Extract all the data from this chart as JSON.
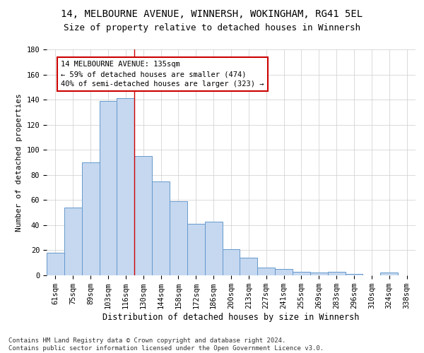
{
  "title1": "14, MELBOURNE AVENUE, WINNERSH, WOKINGHAM, RG41 5EL",
  "title2": "Size of property relative to detached houses in Winnersh",
  "xlabel": "Distribution of detached houses by size in Winnersh",
  "ylabel": "Number of detached properties",
  "categories": [
    "61sqm",
    "75sqm",
    "89sqm",
    "103sqm",
    "116sqm",
    "130sqm",
    "144sqm",
    "158sqm",
    "172sqm",
    "186sqm",
    "200sqm",
    "213sqm",
    "227sqm",
    "241sqm",
    "255sqm",
    "269sqm",
    "283sqm",
    "296sqm",
    "310sqm",
    "324sqm",
    "338sqm"
  ],
  "values": [
    18,
    54,
    90,
    139,
    141,
    95,
    75,
    59,
    41,
    43,
    21,
    14,
    6,
    5,
    3,
    2,
    3,
    1,
    0,
    2,
    0
  ],
  "bar_color": "#c5d8f0",
  "bar_edge_color": "#6699cc",
  "background_color": "#ffffff",
  "grid_color": "#cccccc",
  "ylim": [
    0,
    180
  ],
  "yticks": [
    0,
    20,
    40,
    60,
    80,
    100,
    120,
    140,
    160,
    180
  ],
  "property_line_x": 4.5,
  "annotation_line1": "14 MELBOURNE AVENUE: 135sqm",
  "annotation_line2": "← 59% of detached houses are smaller (474)",
  "annotation_line3": "40% of semi-detached houses are larger (323) →",
  "annotation_box_color": "#ffffff",
  "annotation_box_edge": "#cc0000",
  "footer_text": "Contains HM Land Registry data © Crown copyright and database right 2024.\nContains public sector information licensed under the Open Government Licence v3.0.",
  "title1_fontsize": 10,
  "title2_fontsize": 9,
  "xlabel_fontsize": 8.5,
  "ylabel_fontsize": 8,
  "tick_fontsize": 7.5,
  "annotation_fontsize": 7.5,
  "footer_fontsize": 6.5
}
